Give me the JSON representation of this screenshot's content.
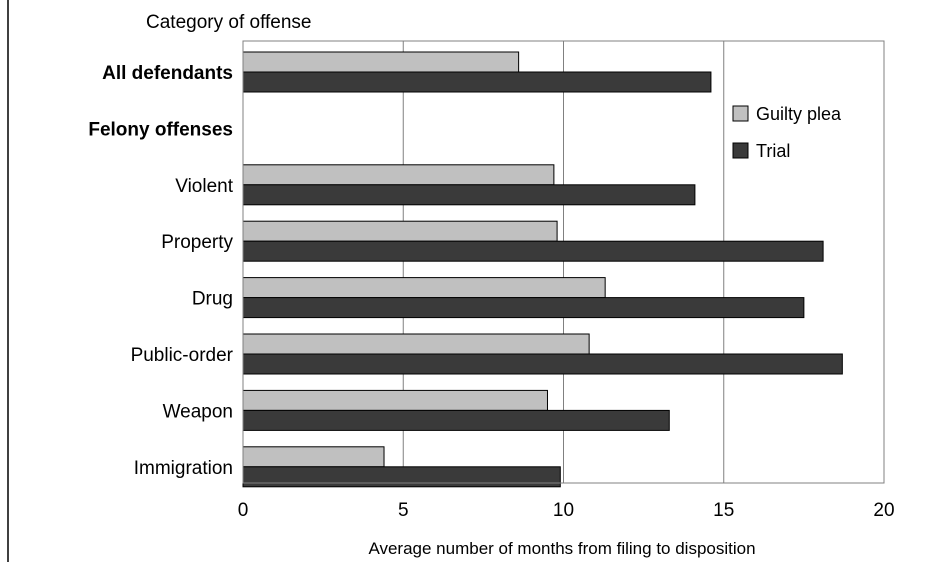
{
  "chart_data": {
    "type": "bar",
    "orientation": "horizontal",
    "category_axis_title": "Category of offense",
    "xlabel": "Average number of months from filing to disposition",
    "xlim": [
      0,
      20
    ],
    "xticks": [
      0,
      5,
      10,
      15,
      20
    ],
    "grid": true,
    "legend_position": "right",
    "categories": [
      {
        "label": "All defendants",
        "bold": true,
        "guilty_plea": 8.6,
        "trial": 14.6
      },
      {
        "label": "Felony offenses",
        "bold": true,
        "header": true
      },
      {
        "label": "Violent",
        "guilty_plea": 9.7,
        "trial": 14.1
      },
      {
        "label": "Property",
        "guilty_plea": 9.8,
        "trial": 18.1
      },
      {
        "label": "Drug",
        "guilty_plea": 11.3,
        "trial": 17.5
      },
      {
        "label": "Public-order",
        "guilty_plea": 10.8,
        "trial": 18.7
      },
      {
        "label": "Weapon",
        "guilty_plea": 9.5,
        "trial": 13.3
      },
      {
        "label": "Immigration",
        "guilty_plea": 4.4,
        "trial": 9.9
      }
    ],
    "series": [
      {
        "key": "guilty_plea",
        "name": "Guilty plea",
        "color": "#c0c0c0"
      },
      {
        "key": "trial",
        "name": "Trial",
        "color": "#3a3a3a"
      }
    ]
  }
}
